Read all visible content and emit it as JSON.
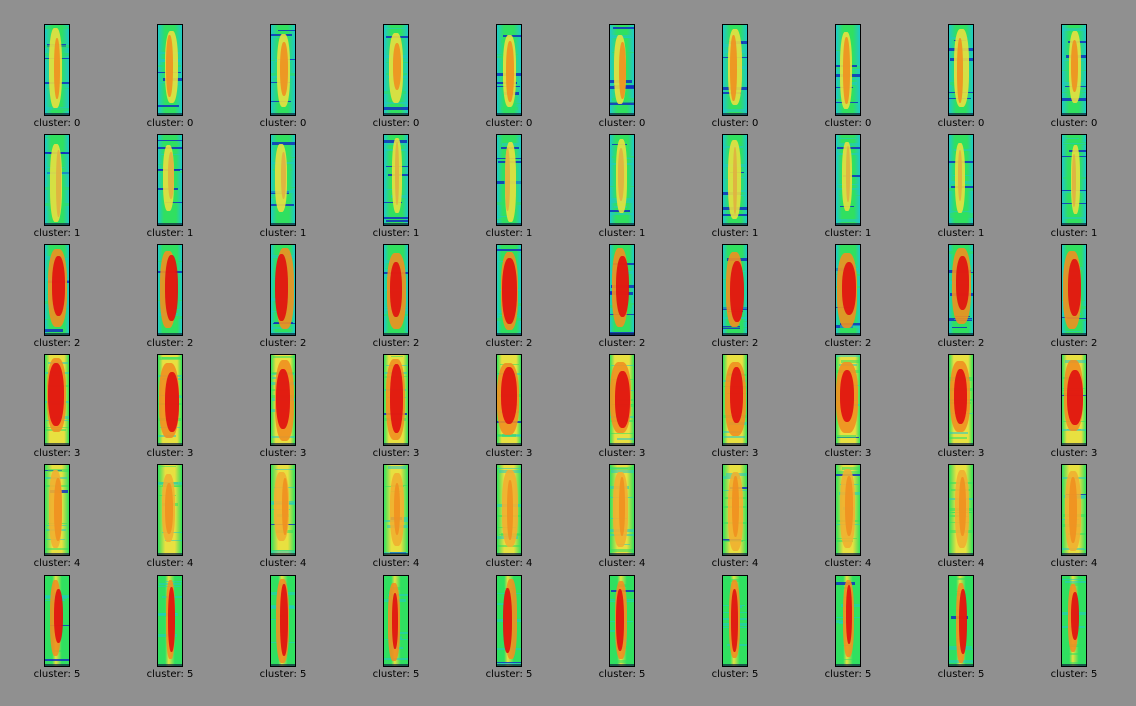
{
  "colors": {
    "background": "#909090",
    "jet_blue": "#1030c0",
    "jet_cyan": "#20c8c8",
    "jet_green": "#30e060",
    "jet_yellow": "#e8e040",
    "jet_orange": "#f09020",
    "jet_red": "#e01010"
  },
  "grid": {
    "columns": 10,
    "rows": [
      {
        "cluster": 0,
        "labels": [
          "cluster: 0",
          "cluster: 0",
          "cluster: 0",
          "cluster: 0",
          "cluster: 0",
          "cluster: 0",
          "cluster: 0",
          "cluster: 0",
          "cluster: 0",
          "cluster: 0"
        ],
        "style": "low"
      },
      {
        "cluster": 1,
        "labels": [
          "cluster: 1",
          "cluster: 1",
          "cluster: 1",
          "cluster: 1",
          "cluster: 1",
          "cluster: 1",
          "cluster: 1",
          "cluster: 1",
          "cluster: 1",
          "cluster: 1"
        ],
        "style": "faint"
      },
      {
        "cluster": 2,
        "labels": [
          "cluster: 2",
          "cluster: 2",
          "cluster: 2",
          "cluster: 2",
          "cluster: 2",
          "cluster: 2",
          "cluster: 2",
          "cluster: 2",
          "cluster: 2",
          "cluster: 2"
        ],
        "style": "strong"
      },
      {
        "cluster": 3,
        "labels": [
          "cluster: 3",
          "cluster: 3",
          "cluster: 3",
          "cluster: 3",
          "cluster: 3",
          "cluster: 3",
          "cluster: 3",
          "cluster: 3",
          "cluster: 3",
          "cluster: 3"
        ],
        "style": "hot"
      },
      {
        "cluster": 4,
        "labels": [
          "cluster: 4",
          "cluster: 4",
          "cluster: 4",
          "cluster: 4",
          "cluster: 4",
          "cluster: 4",
          "cluster: 4",
          "cluster: 4",
          "cluster: 4",
          "cluster: 4"
        ],
        "style": "warm"
      },
      {
        "cluster": 5,
        "labels": [
          "cluster: 5",
          "cluster: 5",
          "cluster: 5",
          "cluster: 5",
          "cluster: 5",
          "cluster: 5",
          "cluster: 5",
          "cluster: 5",
          "cluster: 5",
          "cluster: 5"
        ],
        "style": "narrow"
      }
    ]
  }
}
